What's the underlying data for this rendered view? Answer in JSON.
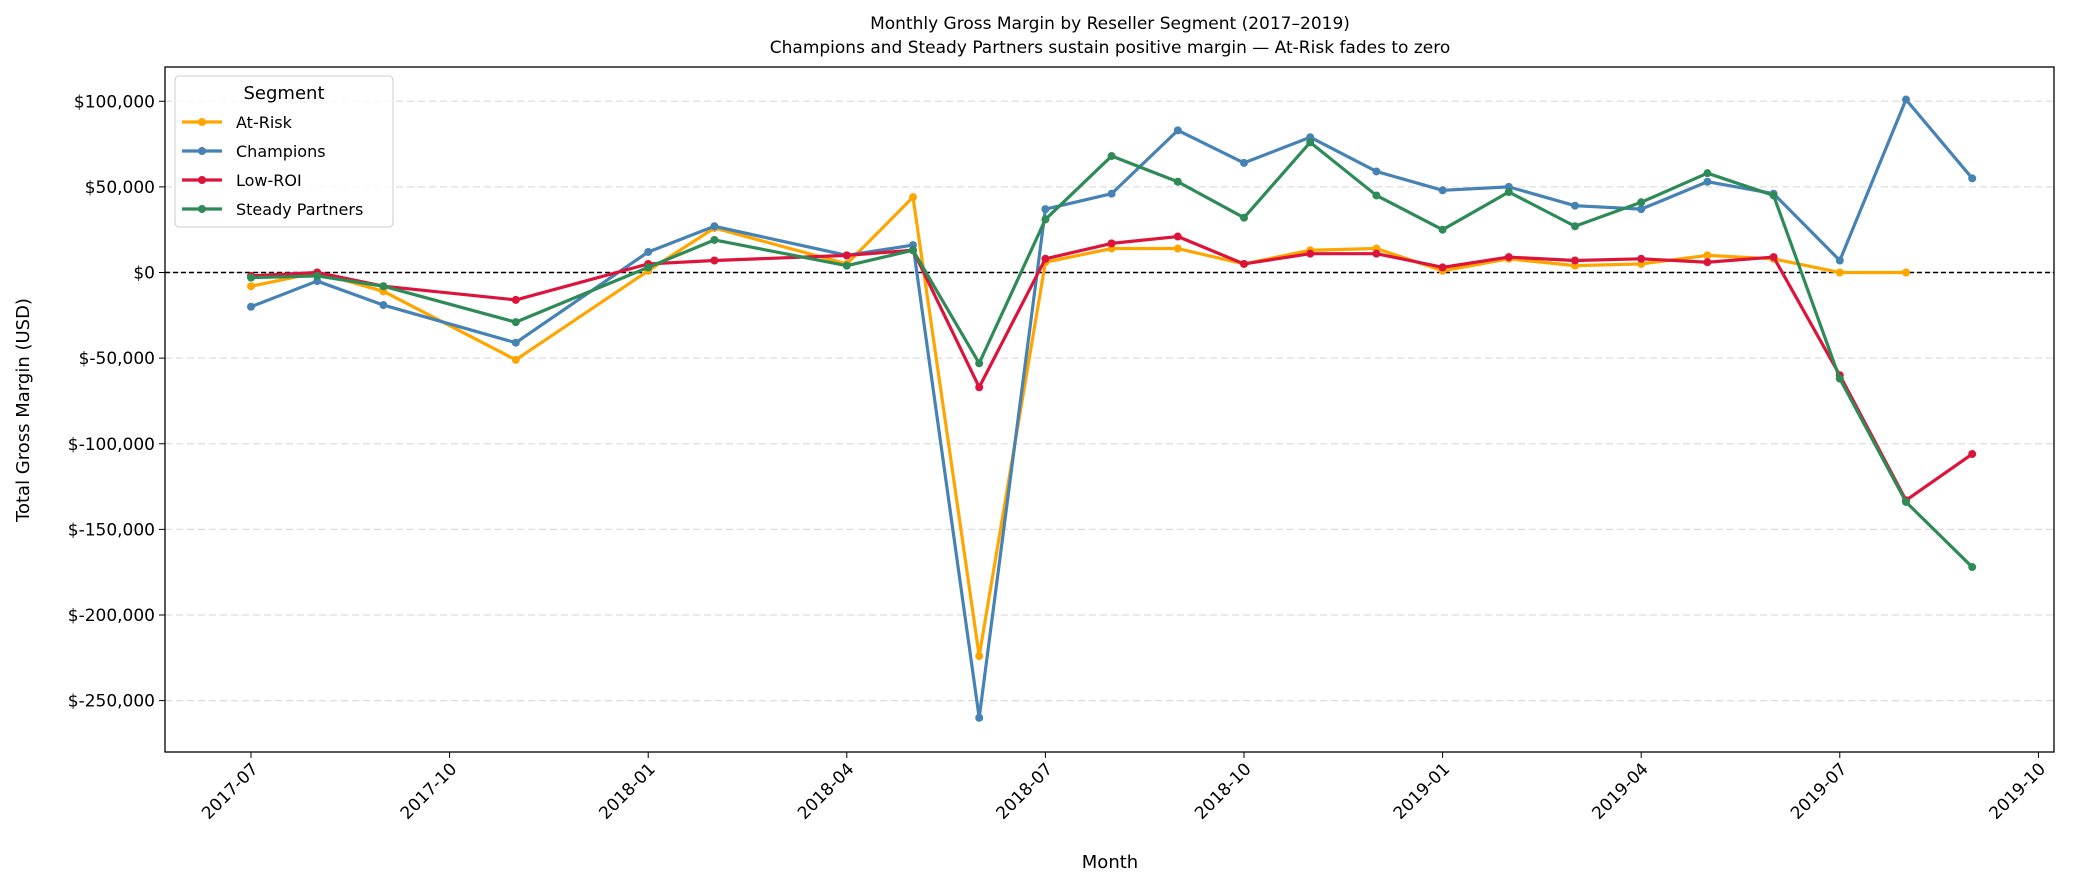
{
  "chart_data": {
    "type": "line",
    "title": "Monthly Gross Margin by Reseller Segment (2017–2019)",
    "subtitle": "Champions and Steady Partners sustain positive margin — At-Risk fades to zero",
    "xlabel": "Month",
    "ylabel": "Total Gross Margin (USD)",
    "ylim": [
      -280000,
      120000
    ],
    "xlim": [
      "2017-05-20",
      "2019-10-08"
    ],
    "grid": "y-dashed",
    "zero_line": true,
    "legend": {
      "title": "Segment",
      "placement": "top-left"
    },
    "x_ticks": [
      "2017-07",
      "2017-10",
      "2018-01",
      "2018-04",
      "2018-07",
      "2018-10",
      "2019-01",
      "2019-04",
      "2019-07",
      "2019-10"
    ],
    "y_ticks": [
      {
        "value": 100000,
        "label": "$100,000"
      },
      {
        "value": 50000,
        "label": "$50,000"
      },
      {
        "value": 0,
        "label": "$0"
      },
      {
        "value": -50000,
        "label": "$-50,000"
      },
      {
        "value": -100000,
        "label": "$-100,000"
      },
      {
        "value": -150000,
        "label": "$-150,000"
      },
      {
        "value": -200000,
        "label": "$-200,000"
      },
      {
        "value": -250000,
        "label": "$-250,000"
      }
    ],
    "x": [
      "2017-07",
      "2017-08",
      "2017-09",
      "2017-11",
      "2018-01",
      "2018-02",
      "2018-04",
      "2018-05",
      "2018-06",
      "2018-07",
      "2018-08",
      "2018-09",
      "2018-10",
      "2018-11",
      "2018-12",
      "2019-01",
      "2019-02",
      "2019-03",
      "2019-04",
      "2019-05",
      "2019-06",
      "2019-07",
      "2019-08",
      "2019-09"
    ],
    "series": [
      {
        "name": "At-Risk",
        "color": "#FFA500",
        "values": [
          -8000,
          0,
          -11000,
          -51000,
          1000,
          26000,
          5000,
          44000,
          -224000,
          6000,
          14000,
          14000,
          5000,
          13000,
          14000,
          1000,
          8000,
          4000,
          5000,
          10000,
          8000,
          0,
          0,
          null
        ]
      },
      {
        "name": "Champions",
        "color": "#4682B4",
        "values": [
          -20000,
          -5000,
          -19000,
          -41000,
          12000,
          27000,
          10000,
          16000,
          -260000,
          37000,
          46000,
          83000,
          64000,
          79000,
          59000,
          48000,
          50000,
          39000,
          37000,
          53000,
          46000,
          7000,
          101000,
          55000
        ]
      },
      {
        "name": "Low-ROI",
        "color": "#DC143C",
        "values": [
          -2000,
          0,
          -8000,
          -16000,
          5000,
          7000,
          10000,
          13000,
          -67000,
          8000,
          17000,
          21000,
          5000,
          11000,
          11000,
          3000,
          9000,
          7000,
          8000,
          6000,
          9000,
          -60000,
          -133000,
          -106000
        ]
      },
      {
        "name": "Steady Partners",
        "color": "#2E8B57",
        "values": [
          -3000,
          -2000,
          -8000,
          -29000,
          3000,
          19000,
          4000,
          13000,
          -53000,
          31000,
          68000,
          53000,
          32000,
          76000,
          45000,
          25000,
          47000,
          27000,
          41000,
          58000,
          45000,
          -62000,
          -134000,
          -172000
        ]
      }
    ]
  }
}
